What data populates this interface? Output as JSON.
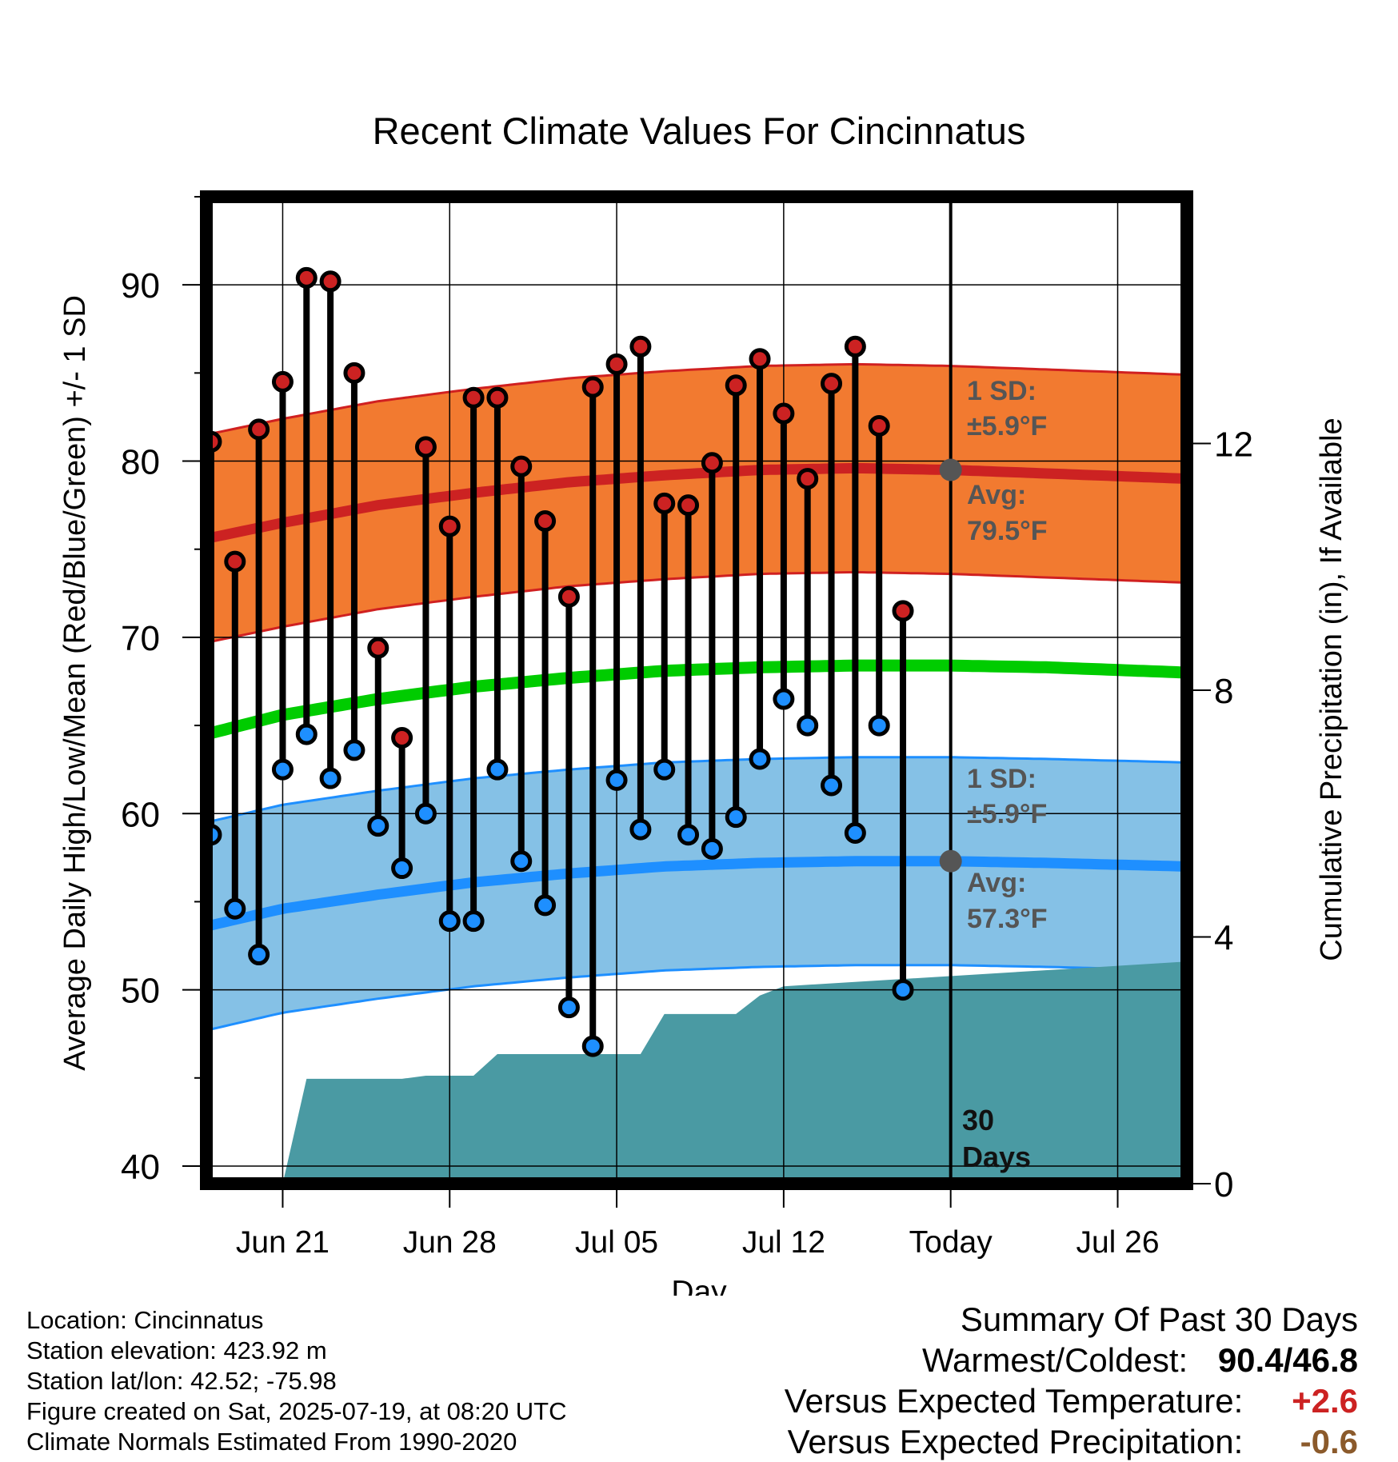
{
  "chart_data": {
    "type": "line",
    "title": "Recent Climate Values For Cincinnatus",
    "xlabel": "Day",
    "ylabel": "Average Daily High/Low/Mean (Red/Blue/Green) +/- 1 SD",
    "y2label": "Cumulative Precipitation (in), If Available",
    "ylim": [
      39,
      95
    ],
    "y2lim": [
      0,
      16
    ],
    "yticks": [
      40,
      50,
      60,
      70,
      80,
      90
    ],
    "y2ticks": [
      0,
      4,
      8,
      12
    ],
    "x_tick_labels": [
      {
        "day": 4,
        "label": "Jun 21"
      },
      {
        "day": 11,
        "label": "Jun 28"
      },
      {
        "day": 18,
        "label": "Jul 05"
      },
      {
        "day": 25,
        "label": "Jul 12"
      },
      {
        "day": 32,
        "label": "Today"
      },
      {
        "day": 39,
        "label": "Jul 26"
      }
    ],
    "x_range_days": [
      0.8,
      41.9
    ],
    "x_day_origin": "Jun 17",
    "today_day": 32,
    "grid": true,
    "daily_high": [
      81.1,
      74.3,
      81.8,
      84.5,
      90.4,
      90.2,
      85.0,
      69.4,
      64.3,
      80.8,
      76.3,
      83.6,
      83.6,
      79.7,
      76.6,
      72.3,
      84.2,
      85.5,
      86.5,
      77.6,
      77.5,
      79.9,
      84.3,
      85.8,
      82.7,
      79.0,
      84.4,
      86.5,
      82.0,
      71.5
    ],
    "daily_low": [
      58.8,
      54.6,
      52.0,
      62.5,
      64.5,
      62.0,
      63.6,
      59.3,
      56.9,
      60.0,
      53.9,
      53.9,
      62.5,
      57.3,
      54.8,
      49.0,
      46.8,
      61.9,
      59.1,
      62.5,
      58.8,
      58.0,
      59.8,
      63.1,
      66.5,
      65.0,
      61.6,
      58.9,
      65.0,
      50.0
    ],
    "normal_high_days": [
      0.8,
      4,
      8,
      12,
      16,
      20,
      24,
      28,
      32,
      36,
      41.9
    ],
    "normal_high": [
      75.6,
      76.5,
      77.5,
      78.2,
      78.8,
      79.2,
      79.5,
      79.6,
      79.5,
      79.3,
      79.0
    ],
    "normal_mean": [
      64.5,
      65.6,
      66.5,
      67.2,
      67.7,
      68.1,
      68.3,
      68.4,
      68.4,
      68.3,
      68.0
    ],
    "normal_low": [
      53.6,
      54.6,
      55.4,
      56.1,
      56.6,
      57.0,
      57.2,
      57.3,
      57.3,
      57.2,
      57.0
    ],
    "sd": 5.9,
    "cumulative_precip_days": [
      0.8,
      4,
      5,
      9,
      10,
      11,
      12,
      13,
      17,
      18,
      19,
      20,
      22,
      23,
      24,
      25,
      41.9
    ],
    "cumulative_precip": [
      0,
      0,
      1.7,
      1.7,
      1.75,
      1.75,
      1.75,
      2.1,
      2.1,
      2.1,
      2.1,
      2.75,
      2.75,
      2.75,
      3.05,
      3.2,
      3.6
    ],
    "annotations": {
      "high_sd_label": "1 SD:",
      "high_sd_value": "±5.9°F",
      "high_avg_label": "Avg:",
      "high_avg_value": "79.5°F",
      "low_sd_label": "1 SD:",
      "low_sd_value": "±5.9°F",
      "low_avg_label": "Avg:",
      "low_avg_value": "57.3°F",
      "days_label_1": "30",
      "days_label_2": "Days"
    },
    "colors": {
      "high_band": "#f27a30",
      "high_band_edge": "#d02020",
      "high_line": "#cc2222",
      "low_band": "#85c1e6",
      "low_band_edge": "#1e8fff",
      "low_line": "#1e8fff",
      "mean_line": "#00cc00",
      "precip": "#4a9aa3",
      "high_marker": "#cc2222",
      "low_marker": "#1e8fff",
      "annotation": "#555555"
    }
  },
  "info": {
    "location": "Location: Cincinnatus",
    "elevation": "Station elevation: 423.92 m",
    "latlon": "Station lat/lon: 42.52; -75.98",
    "created": "Figure created on Sat, 2025-07-19, at 08:20 UTC",
    "normals": "Climate Normals Estimated From 1990-2020"
  },
  "summary": {
    "title": "Summary Of Past 30 Days",
    "warm_cold_label": "Warmest/Coldest:",
    "warm_cold_value": "90.4/46.8",
    "temp_label": "Versus Expected Temperature:",
    "temp_value": "+2.6",
    "temp_color": "#cc2222",
    "precip_label": "Versus Expected Precipitation:",
    "precip_value": "-0.6",
    "precip_color": "#8b5a2b"
  }
}
